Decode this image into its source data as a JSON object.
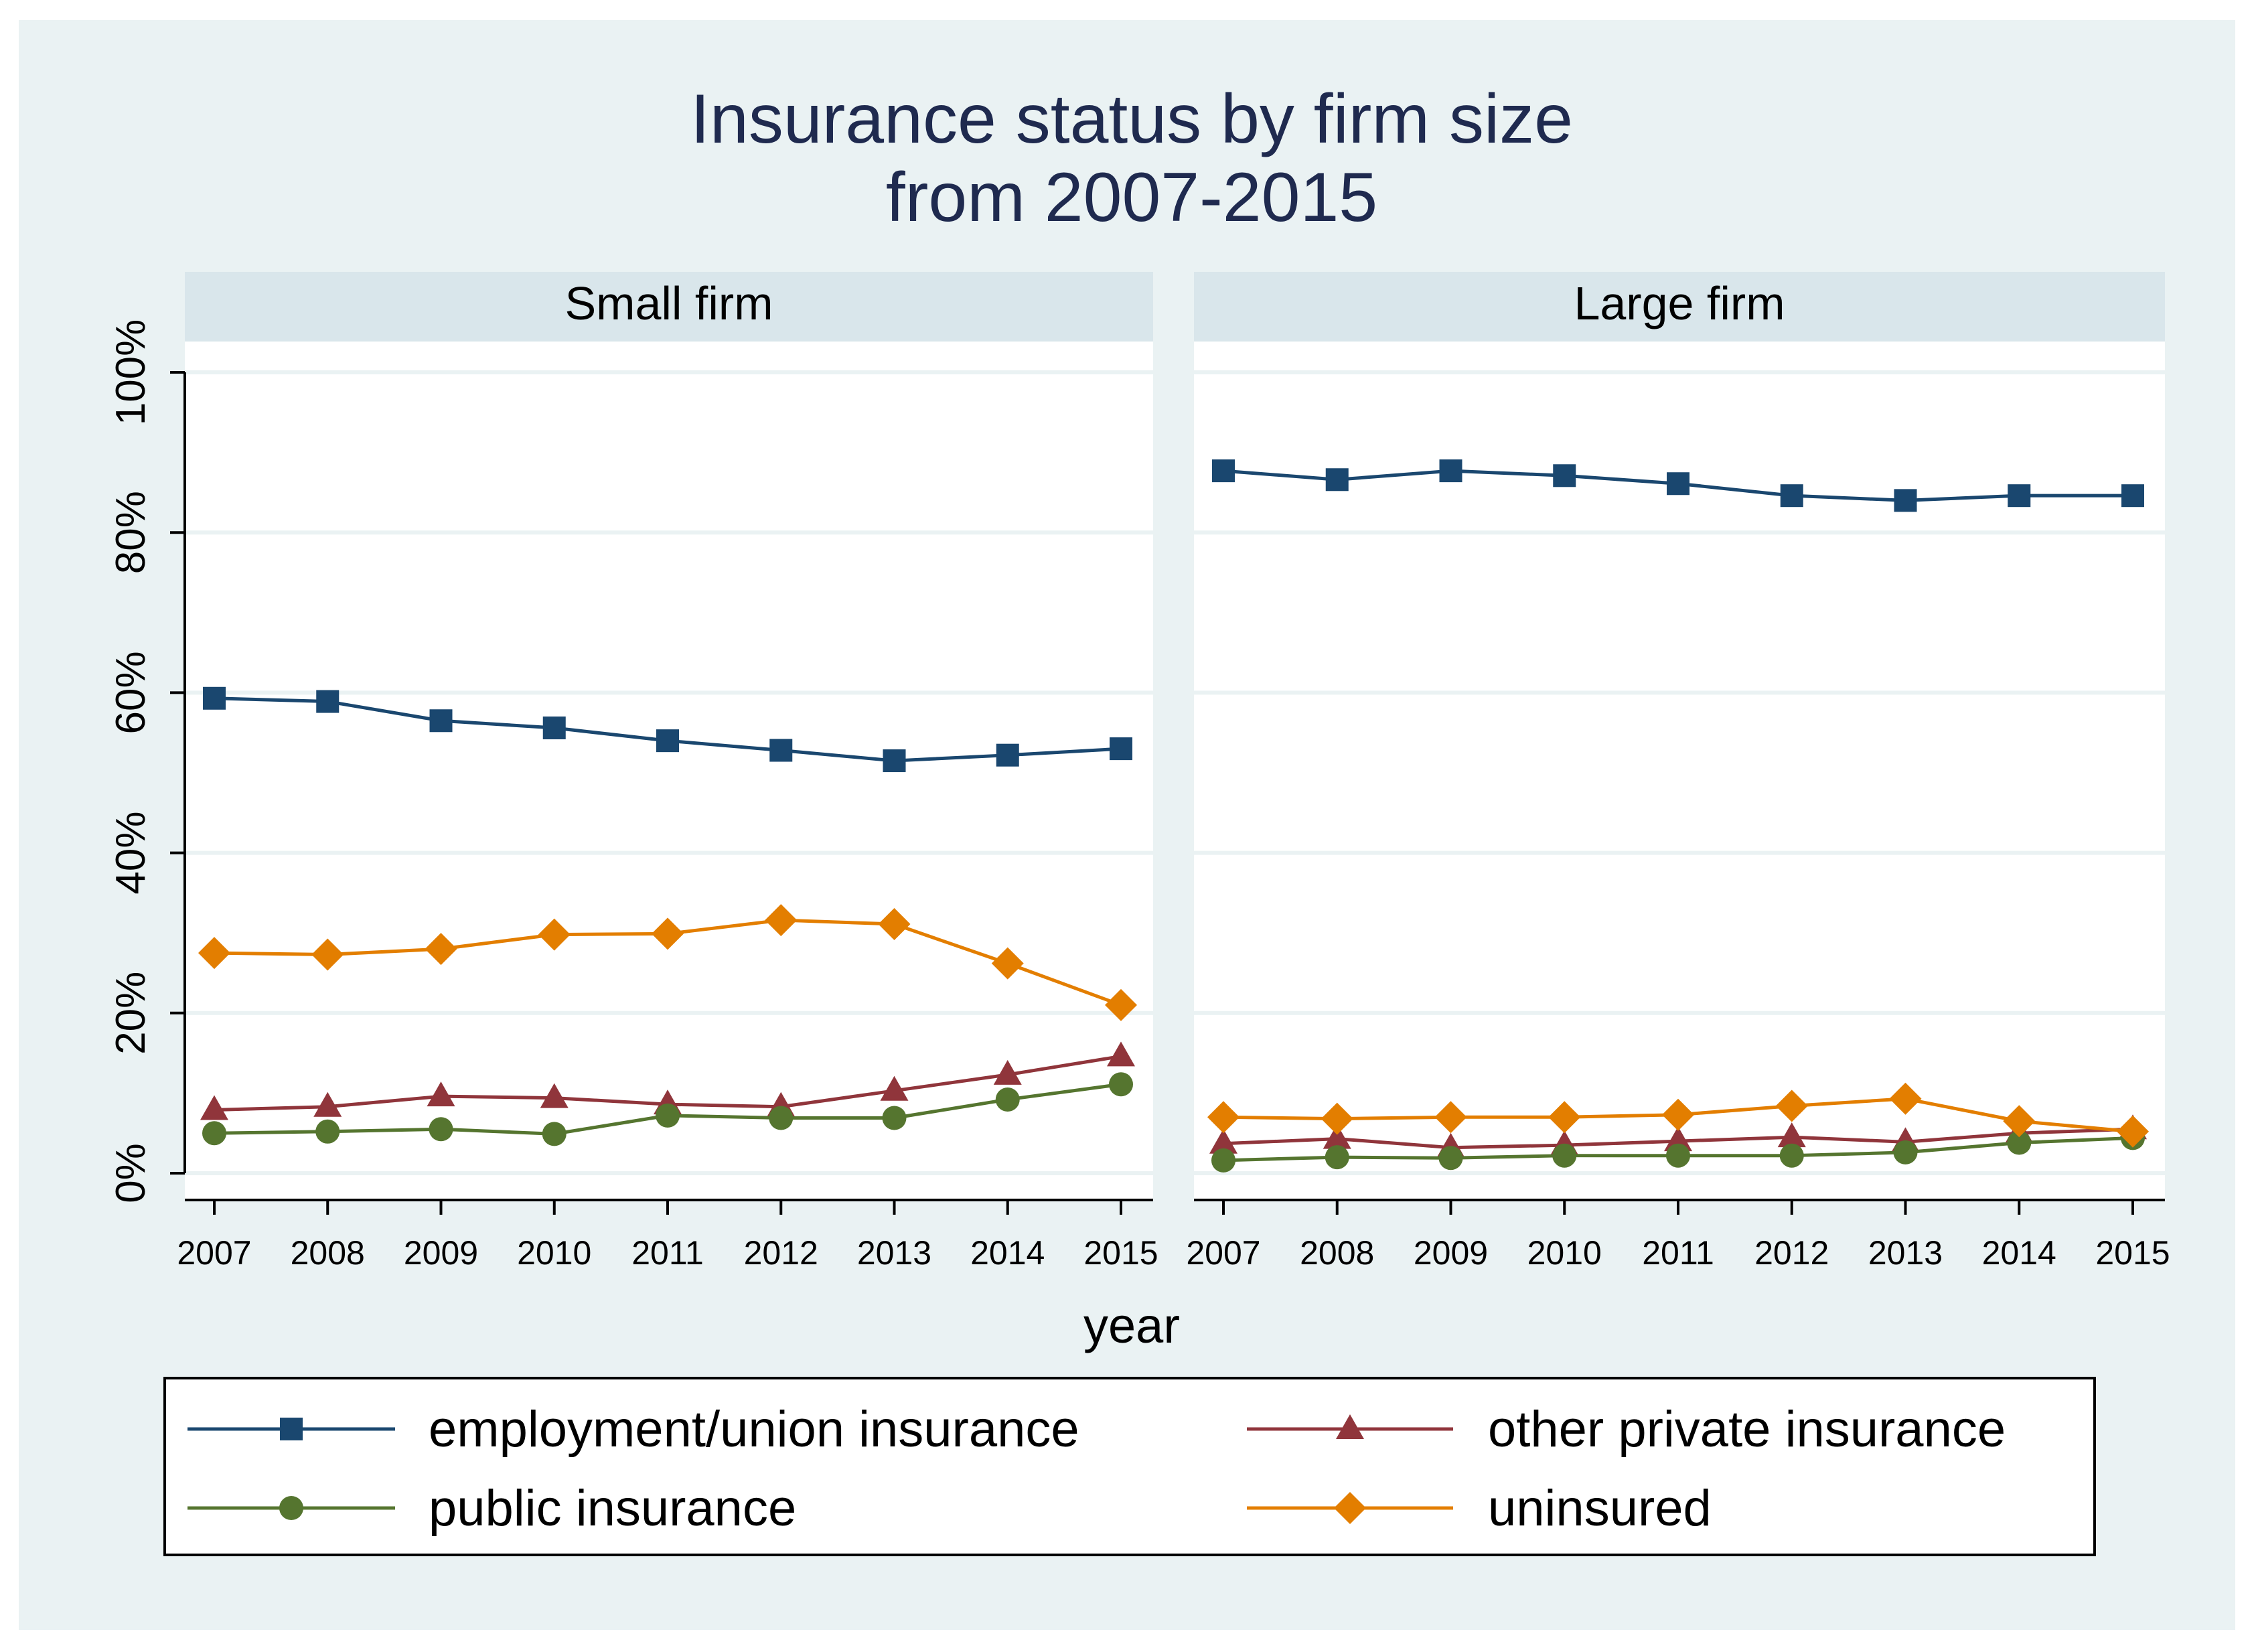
{
  "title_line1": "Insurance status by firm size",
  "title_line2": "from 2007-2015",
  "xlabel": "year",
  "colors": {
    "background": "#EAF2F3",
    "strip": "#D9E6EB",
    "plot": "#FFFFFF",
    "title": "#1F2A4F",
    "employment": "#1A476F",
    "other_private": "#90353B",
    "public": "#55752F",
    "uninsured": "#E37E00"
  },
  "chart_data": {
    "type": "line",
    "x": [
      2007,
      2008,
      2009,
      2010,
      2011,
      2012,
      2013,
      2014,
      2015
    ],
    "ylim": [
      0,
      100
    ],
    "yticks": [
      0,
      20,
      40,
      60,
      80,
      100
    ],
    "ytick_labels": [
      "0%",
      "20%",
      "40%",
      "60%",
      "80%",
      "100%"
    ],
    "grid": true,
    "legend_position": "bottom",
    "panels": [
      {
        "label": "Small firm",
        "series": [
          {
            "name": "employment/union insurance",
            "marker": "square",
            "color_key": "employment",
            "values": [
              59.3,
              58.9,
              56.5,
              55.6,
              54.0,
              52.8,
              51.5,
              52.2,
              53.0
            ]
          },
          {
            "name": "other private insurance",
            "marker": "triangle",
            "color_key": "other_private",
            "values": [
              7.9,
              8.3,
              9.6,
              9.4,
              8.6,
              8.3,
              10.3,
              12.3,
              14.6
            ]
          },
          {
            "name": "public insurance",
            "marker": "circle",
            "color_key": "public",
            "values": [
              5.0,
              5.2,
              5.5,
              4.9,
              7.2,
              6.9,
              6.9,
              9.2,
              11.1
            ]
          },
          {
            "name": "uninsured",
            "marker": "diamond",
            "color_key": "uninsured",
            "values": [
              27.5,
              27.3,
              28.0,
              29.8,
              29.9,
              31.6,
              31.1,
              26.2,
              21.0
            ]
          }
        ]
      },
      {
        "label": "Large firm",
        "series": [
          {
            "name": "employment/union insurance",
            "marker": "square",
            "color_key": "employment",
            "values": [
              87.7,
              86.6,
              87.7,
              87.1,
              86.1,
              84.6,
              84.0,
              84.6,
              84.6
            ]
          },
          {
            "name": "other private insurance",
            "marker": "triangle",
            "color_key": "other_private",
            "values": [
              3.7,
              4.3,
              3.2,
              3.5,
              4.0,
              4.5,
              3.9,
              5.0,
              5.5
            ]
          },
          {
            "name": "public insurance",
            "marker": "circle",
            "color_key": "public",
            "values": [
              1.6,
              2.0,
              1.9,
              2.2,
              2.2,
              2.2,
              2.6,
              3.8,
              4.4
            ]
          },
          {
            "name": "uninsured",
            "marker": "diamond",
            "color_key": "uninsured",
            "values": [
              7.0,
              6.8,
              7.0,
              7.0,
              7.3,
              8.4,
              9.3,
              6.5,
              5.2
            ]
          }
        ]
      }
    ],
    "legend": [
      {
        "label": "employment/union insurance",
        "marker": "square",
        "color_key": "employment"
      },
      {
        "label": "other private insurance",
        "marker": "triangle",
        "color_key": "other_private"
      },
      {
        "label": "public insurance",
        "marker": "circle",
        "color_key": "public"
      },
      {
        "label": "uninsured",
        "marker": "diamond",
        "color_key": "uninsured"
      }
    ]
  }
}
